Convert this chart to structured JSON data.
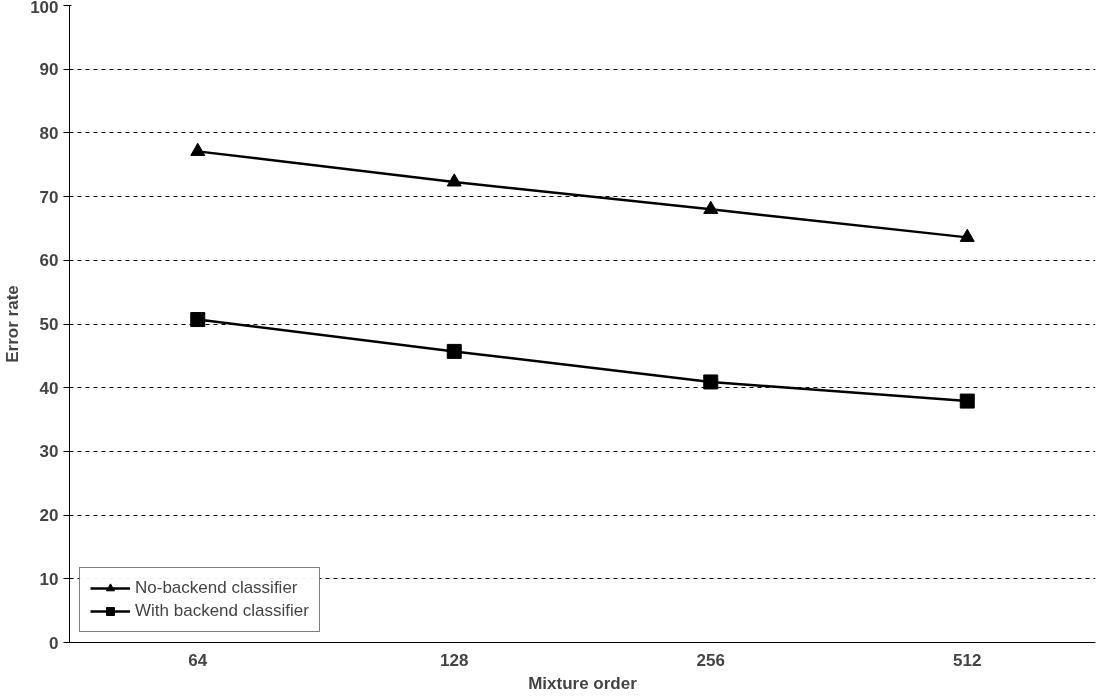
{
  "chart_data": {
    "type": "line",
    "xlabel": "Mixture order",
    "ylabel": "Error rate",
    "categories": [
      "64",
      "128",
      "256",
      "512"
    ],
    "series": [
      {
        "name": "No-backend classifier",
        "color": "#000000",
        "marker": "triangle",
        "values": [
          77.1,
          72.3,
          68,
          63.6
        ]
      },
      {
        "name": "With backend classifier",
        "color": "#000000",
        "marker": "square",
        "values": [
          50.7,
          45.7,
          40.9,
          37.9
        ]
      }
    ],
    "ylim": [
      0,
      100
    ],
    "yticks": [
      0,
      10,
      20,
      30,
      40,
      50,
      60,
      70,
      80,
      90,
      100
    ],
    "grid": "y",
    "legend": "bottom left",
    "line_style": "solid"
  }
}
